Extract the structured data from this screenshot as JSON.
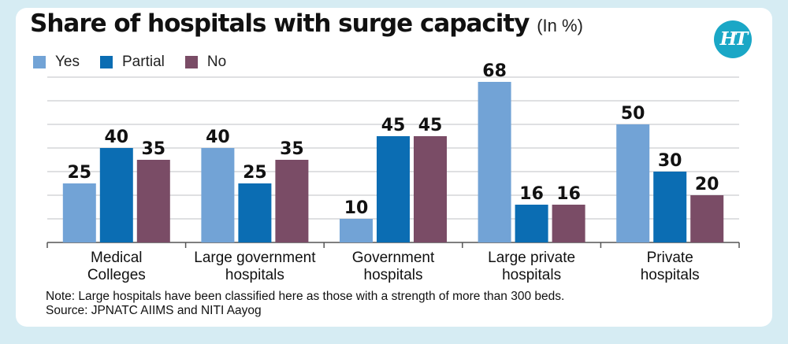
{
  "title": "Share of hospitals with surge capacity",
  "subtitle": "(In %)",
  "logo_text": "HT",
  "colors": {
    "yes": "#72a3d6",
    "partial": "#0b6db3",
    "no": "#7a4c66",
    "grid": "#bfc2c5",
    "background": "#d6ecf3"
  },
  "chart_data": {
    "type": "bar",
    "categories": [
      "Medical\nColleges",
      "Large government\nhospitals",
      "Government\nhospitals",
      "Large private\nhospitals",
      "Private\nhospitals"
    ],
    "series": [
      {
        "name": "Yes",
        "values": [
          25,
          40,
          10,
          68,
          50
        ]
      },
      {
        "name": "Partial",
        "values": [
          40,
          25,
          45,
          16,
          30
        ]
      },
      {
        "name": "No",
        "values": [
          35,
          35,
          45,
          16,
          20
        ]
      }
    ],
    "ylim": [
      0,
      70
    ],
    "grid": true,
    "legend": "top-left"
  },
  "note": "Note: Large hospitals have been classified here as those with a strength of more than 300 beds.",
  "source": "Source: JPNATC AIIMS and NITI Aayog"
}
